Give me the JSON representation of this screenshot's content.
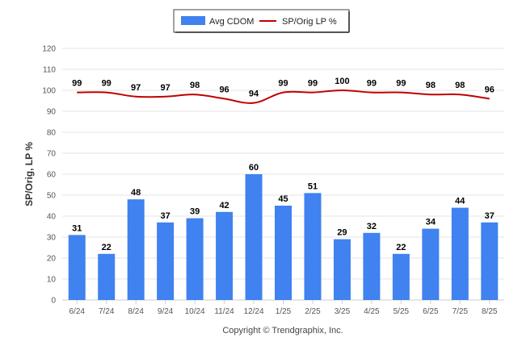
{
  "chart_data": {
    "type": "bar",
    "categories": [
      "6/24",
      "7/24",
      "8/24",
      "9/24",
      "10/24",
      "11/24",
      "12/24",
      "1/25",
      "2/25",
      "3/25",
      "4/25",
      "5/25",
      "6/25",
      "7/25",
      "8/25"
    ],
    "series": [
      {
        "name": "Avg CDOM",
        "type": "bar",
        "color": "#3f82f0",
        "values": [
          31,
          22,
          48,
          37,
          39,
          42,
          60,
          45,
          51,
          29,
          32,
          22,
          34,
          44,
          37
        ]
      },
      {
        "name": "SP/Orig LP %",
        "type": "line",
        "color": "#c00000",
        "values": [
          99,
          99,
          97,
          97,
          98,
          96,
          94,
          99,
          99,
          100,
          99,
          99,
          98,
          98,
          96
        ]
      }
    ],
    "ylabel": "SP/Orig, LP %",
    "ylim": [
      0,
      120
    ],
    "yticks": [
      0,
      10,
      20,
      30,
      40,
      50,
      60,
      70,
      80,
      90,
      100,
      110,
      120
    ],
    "grid": true,
    "legend_position": "top-center"
  },
  "credit": "Copyright © Trendgraphix, Inc."
}
